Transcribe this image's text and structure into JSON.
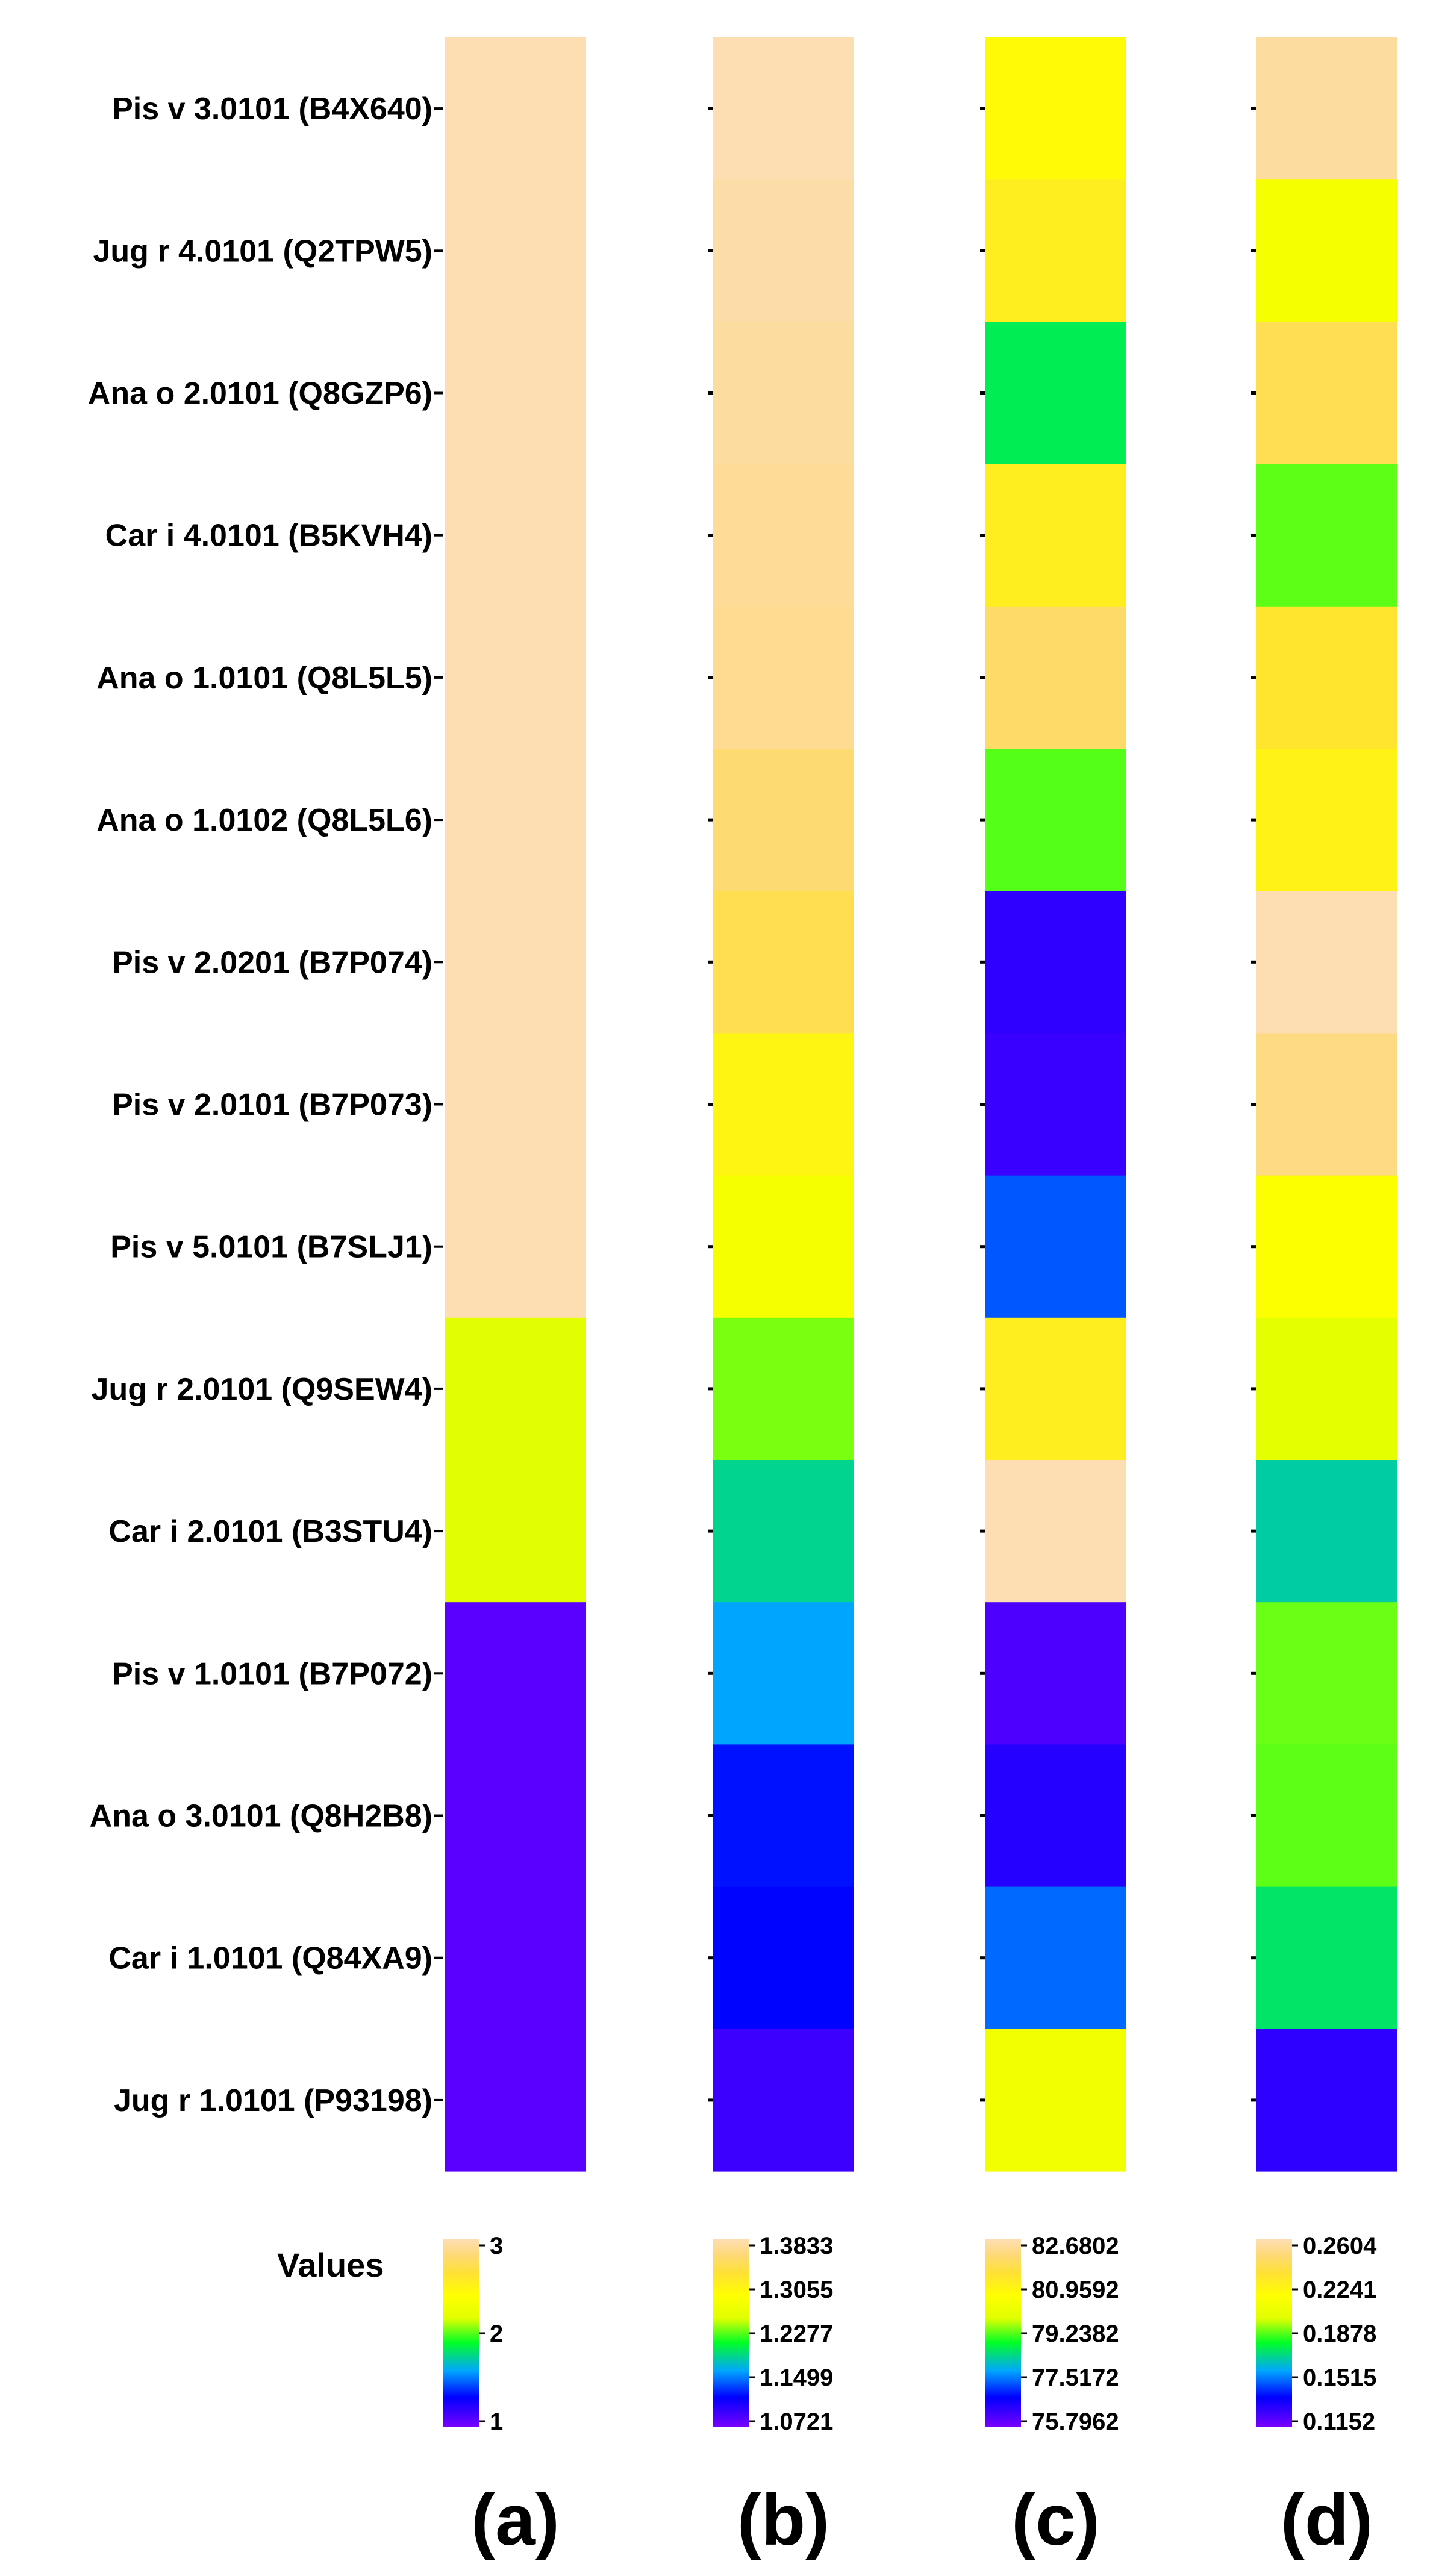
{
  "chart_data": {
    "type": "heatmap",
    "rows": [
      "Pis v 3.0101 (B4X640)",
      "Jug r 4.0101 (Q2TPW5)",
      "Ana o 2.0101 (Q8GZP6)",
      "Car i 4.0101 (B5KVH4)",
      "Ana o 1.0101 (Q8L5L5)",
      "Ana o 1.0102 (Q8L5L6)",
      "Pis v 2.0201 (B7P074)",
      "Pis v 2.0101 (B7P073)",
      "Pis v 5.0101 (B7SLJ1)",
      "Jug r 2.0101 (Q9SEW4)",
      "Car i 2.0101 (B3STU4)",
      "Pis v 1.0101 (B7P072)",
      "Ana o 3.0101 (Q8H2B8)",
      "Car i 1.0101 (Q84XA9)",
      "Jug r 1.0101 (P93198)"
    ],
    "panels": [
      {
        "label": "(a)",
        "min": 1,
        "max": 3,
        "values": [
          3,
          3,
          3,
          3,
          3,
          3,
          3,
          3,
          3,
          2,
          2,
          1,
          1,
          1,
          1
        ],
        "legend_ticks": [
          "3",
          "2",
          "1"
        ]
      },
      {
        "label": "(b)",
        "min": 1.0721,
        "max": 1.3833,
        "values": [
          1.3833,
          1.375,
          1.37,
          1.365,
          1.36,
          1.34,
          1.32,
          1.28,
          1.255,
          1.21,
          1.17,
          1.15,
          1.115,
          1.112,
          1.085
        ],
        "legend_ticks": [
          "1.3833",
          "1.3055",
          "1.2277",
          "1.1499",
          "1.0721"
        ]
      },
      {
        "label": "(c)",
        "min": 75.7962,
        "max": 82.6802,
        "values": [
          80.2,
          80.6,
          78.2,
          80.6,
          81.6,
          78.7,
          76.2,
          76.1,
          77.1,
          80.6,
          82.6802,
          75.9,
          76.3,
          77.2,
          79.7
        ],
        "legend_ticks": [
          "82.6802",
          "80.9592",
          "79.2382",
          "77.5172",
          "75.7962"
        ]
      },
      {
        "label": "(d)",
        "min": 0.1152,
        "max": 0.2604,
        "values": [
          0.2541,
          0.1998,
          0.232,
          0.1772,
          0.2215,
          0.2132,
          0.2604,
          0.2452,
          0.2033,
          0.1898,
          0.1592,
          0.1782,
          0.1772,
          0.1641,
          0.1241
        ],
        "legend_ticks": [
          "0.2604",
          "0.2241",
          "0.1878",
          "0.1515",
          "0.1152"
        ]
      }
    ],
    "colormap": [
      "#5900ff",
      "#0000ff",
      "#00a6ff",
      "#00ff26",
      "#e1ff00",
      "#ffff00",
      "#ffe135",
      "#fed97a",
      "#fddeb3"
    ],
    "legend_title": "Values"
  }
}
